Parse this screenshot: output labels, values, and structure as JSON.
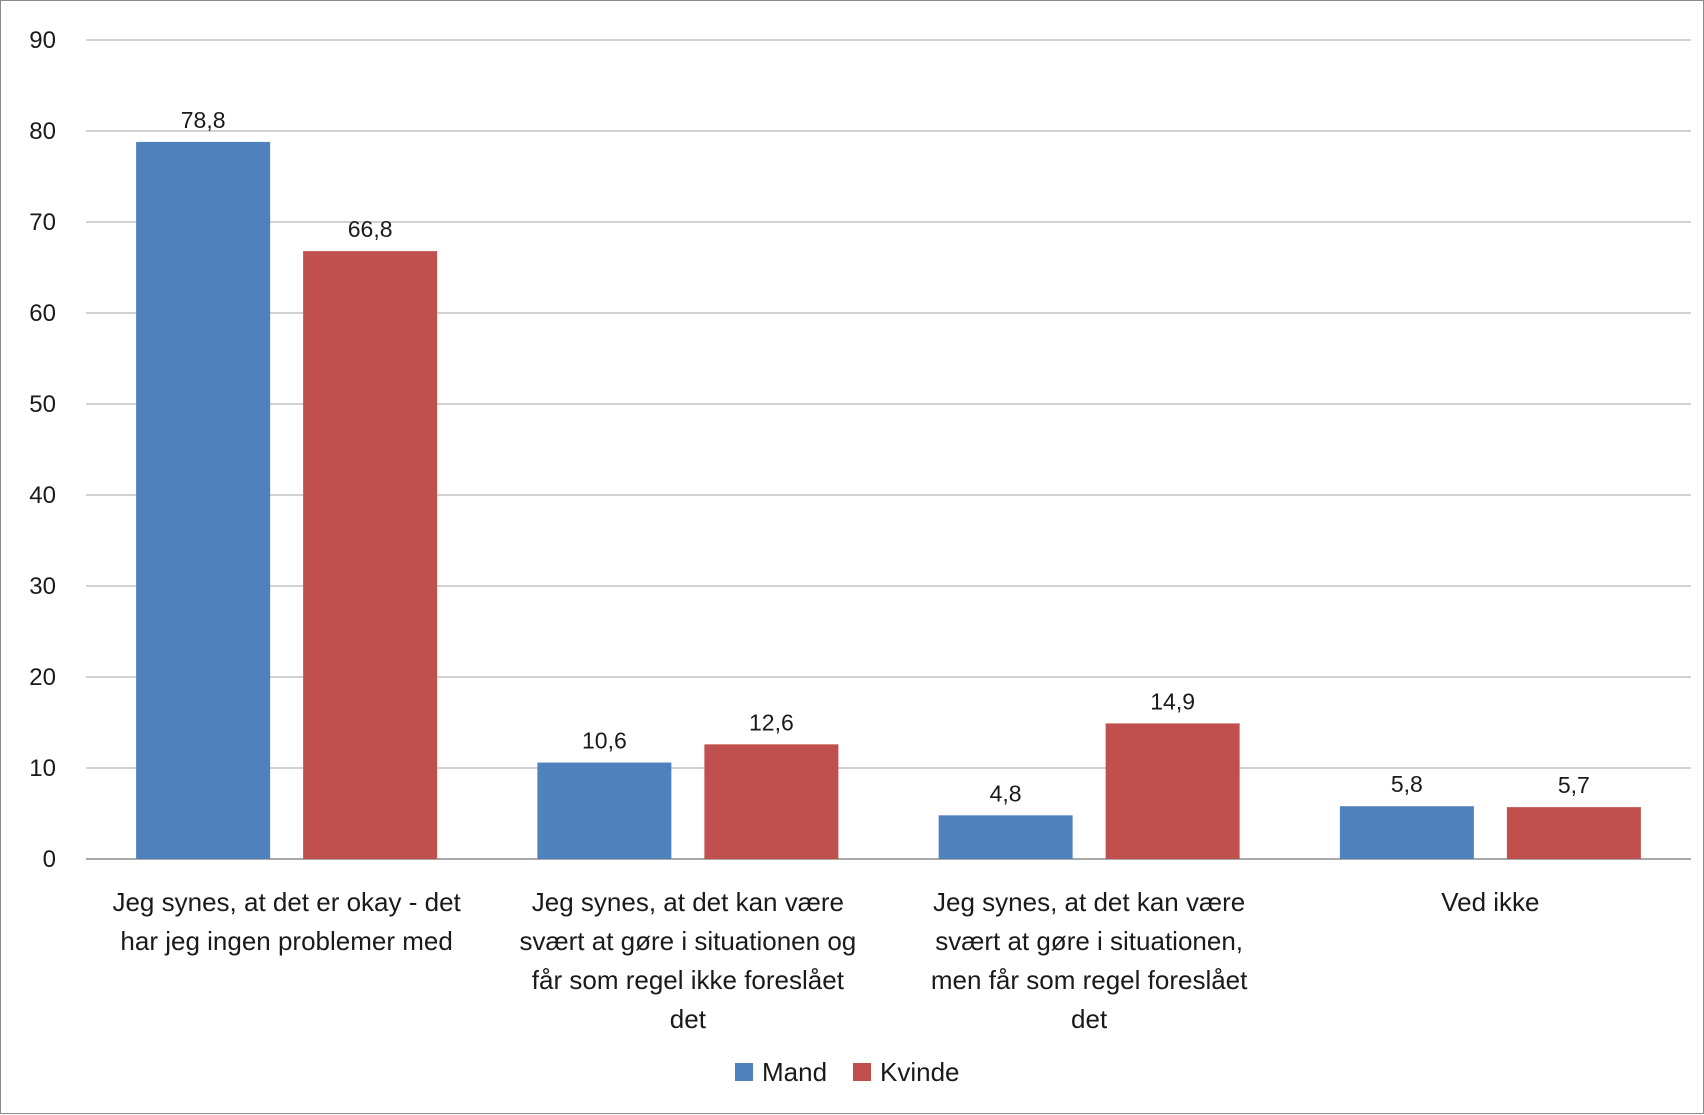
{
  "chart_data": {
    "type": "bar",
    "categories": [
      [
        "Jeg synes, at det er okay - det",
        "har jeg ingen problemer med"
      ],
      [
        "Jeg synes, at det kan være",
        "svært at gøre i situationen og",
        "får som regel ikke foreslået",
        "det"
      ],
      [
        "Jeg synes, at det kan være",
        "svært at gøre i situationen,",
        "men får som regel foreslået",
        "det"
      ],
      [
        "Ved ikke"
      ]
    ],
    "series": [
      {
        "name": "Mand",
        "color": "#4F81BD",
        "values": [
          78.8,
          10.6,
          4.8,
          5.8
        ],
        "labels": [
          "78,8",
          "10,6",
          "4,8",
          "5,8"
        ]
      },
      {
        "name": "Kvinde",
        "color": "#C0504D",
        "values": [
          66.8,
          12.6,
          14.9,
          5.7
        ],
        "labels": [
          "66,8",
          "12,6",
          "14,9",
          "5,7"
        ]
      }
    ],
    "ylim": [
      0,
      90
    ],
    "yticks": [
      0,
      10,
      20,
      30,
      40,
      50,
      60,
      70,
      80,
      90
    ],
    "grid": true,
    "legend": "bottom",
    "title": "",
    "xlabel": "",
    "ylabel": ""
  }
}
